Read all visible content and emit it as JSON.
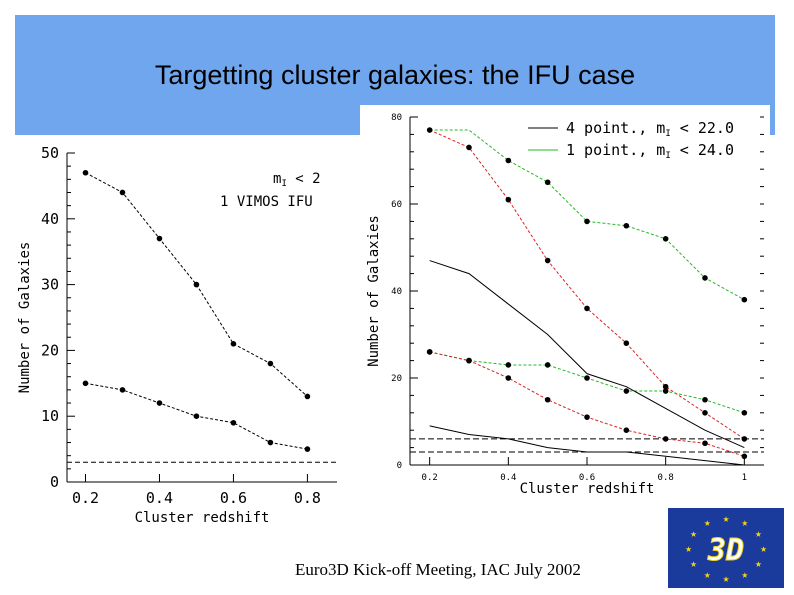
{
  "slide": {
    "title": "Targetting cluster galaxies: the IFU case",
    "footer": "Euro3D Kick-off Meeting, IAC July 2002",
    "logo_text": "3D"
  },
  "colors": {
    "band": "#6fa6ee",
    "green": "#22bb22",
    "red": "#dd2222",
    "black": "#000000",
    "logo_bg": "#1a3b9c",
    "logo_star": "#f2d21b"
  },
  "chart_data": [
    {
      "type": "line",
      "xlabel": "Cluster redshift",
      "ylabel": "Number of Galaxies",
      "xlim": [
        0.15,
        0.88
      ],
      "ylim": [
        0,
        50
      ],
      "xticks": [
        0.2,
        0.4,
        0.6,
        0.8
      ],
      "xticklabels": [
        "0.2",
        "0.4",
        "0.6",
        "0.8"
      ],
      "yticks": [
        0,
        10,
        20,
        30,
        40,
        50
      ],
      "yticklabels": [
        "0",
        "10",
        "20",
        "30",
        "40",
        "50"
      ],
      "annotation_line1": "m",
      "annotation_sub": "I",
      "annotation_rest": " < 2",
      "annotation_line2": "1 VIMOS IFU",
      "hline": 3,
      "series": [
        {
          "color": "black",
          "x": [
            0.2,
            0.3,
            0.4,
            0.5,
            0.6,
            0.7,
            0.8
          ],
          "values": [
            47,
            44,
            37,
            30,
            21,
            18,
            13
          ]
        },
        {
          "color": "black",
          "x": [
            0.2,
            0.3,
            0.4,
            0.5,
            0.6,
            0.7,
            0.8
          ],
          "values": [
            15,
            14,
            12,
            10,
            9,
            6,
            5
          ]
        }
      ]
    },
    {
      "type": "line",
      "xlabel": "Cluster redshift",
      "ylabel": "Number of Galaxies",
      "xlim": [
        0.15,
        1.05
      ],
      "ylim": [
        0,
        80
      ],
      "xticks": [
        0.2,
        0.4,
        0.6,
        0.8,
        1.0
      ],
      "xticklabels": [
        "0.2",
        "0.4",
        "0.6",
        "0.8",
        "1"
      ],
      "yticks": [
        0,
        20,
        40,
        60,
        80
      ],
      "yticklabels": [
        "0",
        "20",
        "40",
        "60",
        "80"
      ],
      "legend": [
        {
          "color": "black",
          "text": "4 point., m",
          "sub": "I",
          "rest": " < 22.0"
        },
        {
          "color": "green",
          "text": "1 point., m",
          "sub": "I",
          "rest": " < 24.0"
        }
      ],
      "hlines": [
        6,
        3
      ],
      "series": [
        {
          "color": "green",
          "x": [
            0.2,
            0.3,
            0.4,
            0.5,
            0.6,
            0.7,
            0.8,
            0.9,
            1.0
          ],
          "values": [
            77,
            77,
            70,
            65,
            56,
            55,
            52,
            43,
            38
          ],
          "markers": [
            0,
            0,
            1,
            1,
            1,
            1,
            1,
            1,
            1
          ]
        },
        {
          "color": "red",
          "x": [
            0.2,
            0.3,
            0.4,
            0.5,
            0.6,
            0.7,
            0.8,
            0.9,
            1.0
          ],
          "values": [
            77,
            73,
            61,
            47,
            36,
            28,
            18,
            12,
            6
          ],
          "markers": [
            1,
            1,
            1,
            1,
            1,
            1,
            1,
            1,
            1
          ]
        },
        {
          "color": "green",
          "x": [
            0.2,
            0.3,
            0.4,
            0.5,
            0.6,
            0.7,
            0.8,
            0.9,
            1.0
          ],
          "values": [
            26,
            24,
            23,
            23,
            20,
            17,
            17,
            15,
            12
          ],
          "markers": [
            1,
            1,
            1,
            1,
            1,
            1,
            1,
            1,
            1
          ]
        },
        {
          "color": "red",
          "x": [
            0.2,
            0.3,
            0.4,
            0.5,
            0.6,
            0.7,
            0.8,
            0.9,
            1.0
          ],
          "values": [
            26,
            24,
            20,
            15,
            11,
            8,
            6,
            5,
            2
          ],
          "markers": [
            1,
            1,
            1,
            1,
            1,
            1,
            1,
            1,
            1
          ]
        },
        {
          "color": "black",
          "x": [
            0.2,
            0.3,
            0.4,
            0.5,
            0.6,
            0.7,
            0.8,
            0.9,
            1.0
          ],
          "values": [
            47,
            44,
            37,
            30,
            21,
            18,
            13,
            8,
            4
          ],
          "markers": [
            0,
            0,
            0,
            0,
            0,
            0,
            0,
            0,
            0
          ]
        },
        {
          "color": "black",
          "x": [
            0.2,
            0.3,
            0.4,
            0.5,
            0.6,
            0.7,
            0.8,
            0.9,
            1.0
          ],
          "values": [
            9,
            7,
            6,
            4,
            3,
            3,
            2,
            1,
            0
          ],
          "markers": [
            0,
            0,
            0,
            0,
            0,
            0,
            0,
            0,
            0
          ]
        }
      ]
    }
  ]
}
